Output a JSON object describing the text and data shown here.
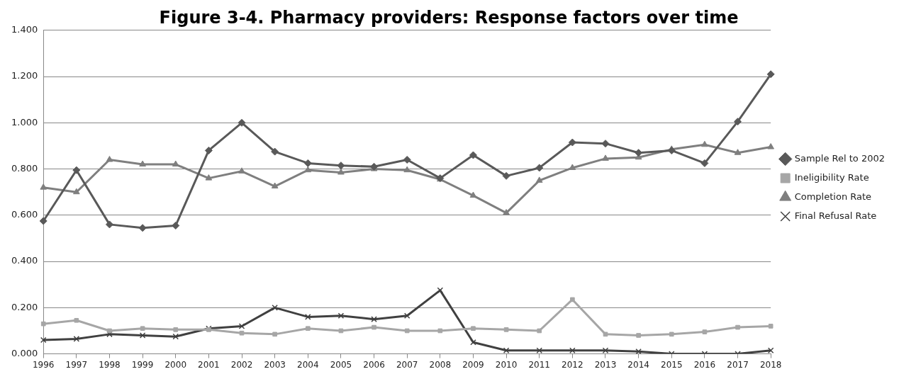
{
  "chart_data": {
    "type": "line",
    "title": "Figure 3-4. Pharmacy providers: Response factors over time",
    "categories": [
      "1996",
      "1997",
      "1998",
      "1999",
      "2000",
      "2001",
      "2002",
      "2003",
      "2004",
      "2005",
      "2006",
      "2007",
      "2008",
      "2009",
      "2010",
      "2011",
      "2012",
      "2013",
      "2014",
      "2015",
      "2016",
      "2017",
      "2018"
    ],
    "series": [
      {
        "name": "Sample Rel to 2002",
        "color": "#595959",
        "marker": "diamond",
        "values": [
          0.575,
          0.795,
          0.56,
          0.545,
          0.555,
          0.88,
          1.0,
          0.875,
          0.825,
          0.815,
          0.81,
          0.84,
          0.76,
          0.86,
          0.77,
          0.805,
          0.915,
          0.91,
          0.87,
          0.88,
          0.825,
          1.005,
          1.21
        ]
      },
      {
        "name": "Ineligibility Rate",
        "color": "#a6a6a6",
        "marker": "square",
        "values": [
          0.13,
          0.145,
          0.1,
          0.11,
          0.105,
          0.105,
          0.09,
          0.085,
          0.11,
          0.1,
          0.115,
          0.1,
          0.1,
          0.11,
          0.105,
          0.1,
          0.235,
          0.085,
          0.08,
          0.085,
          0.095,
          0.115,
          0.12
        ]
      },
      {
        "name": "Completion Rate",
        "color": "#7f7f7f",
        "marker": "triangle",
        "values": [
          0.72,
          0.7,
          0.84,
          0.82,
          0.82,
          0.76,
          0.79,
          0.725,
          0.795,
          0.785,
          0.8,
          0.795,
          0.755,
          0.685,
          0.61,
          0.75,
          0.805,
          0.845,
          0.85,
          0.885,
          0.905,
          0.87,
          0.895
        ]
      },
      {
        "name": "Final Refusal Rate",
        "color": "#404040",
        "marker": "cross",
        "values": [
          0.06,
          0.065,
          0.085,
          0.08,
          0.075,
          0.11,
          0.12,
          0.2,
          0.16,
          0.165,
          0.15,
          0.165,
          0.275,
          0.05,
          0.015,
          0.015,
          0.015,
          0.015,
          0.01,
          0.0,
          0.0,
          0.0,
          0.015
        ]
      }
    ],
    "ylim": [
      0,
      1.4
    ],
    "yticks": [
      {
        "value": 0,
        "label": "0.000"
      },
      {
        "value": 0.2,
        "label": "0.200"
      },
      {
        "value": 0.4,
        "label": "0.400"
      },
      {
        "value": 0.6,
        "label": "0.600"
      },
      {
        "value": 0.8,
        "label": "0.800"
      },
      {
        "value": 1.0,
        "label": "1.000"
      },
      {
        "value": 1.2,
        "label": "1.200"
      },
      {
        "value": 1.4,
        "label": "1.400"
      }
    ],
    "grid": "y",
    "legend": "right",
    "line_style": "solid"
  }
}
